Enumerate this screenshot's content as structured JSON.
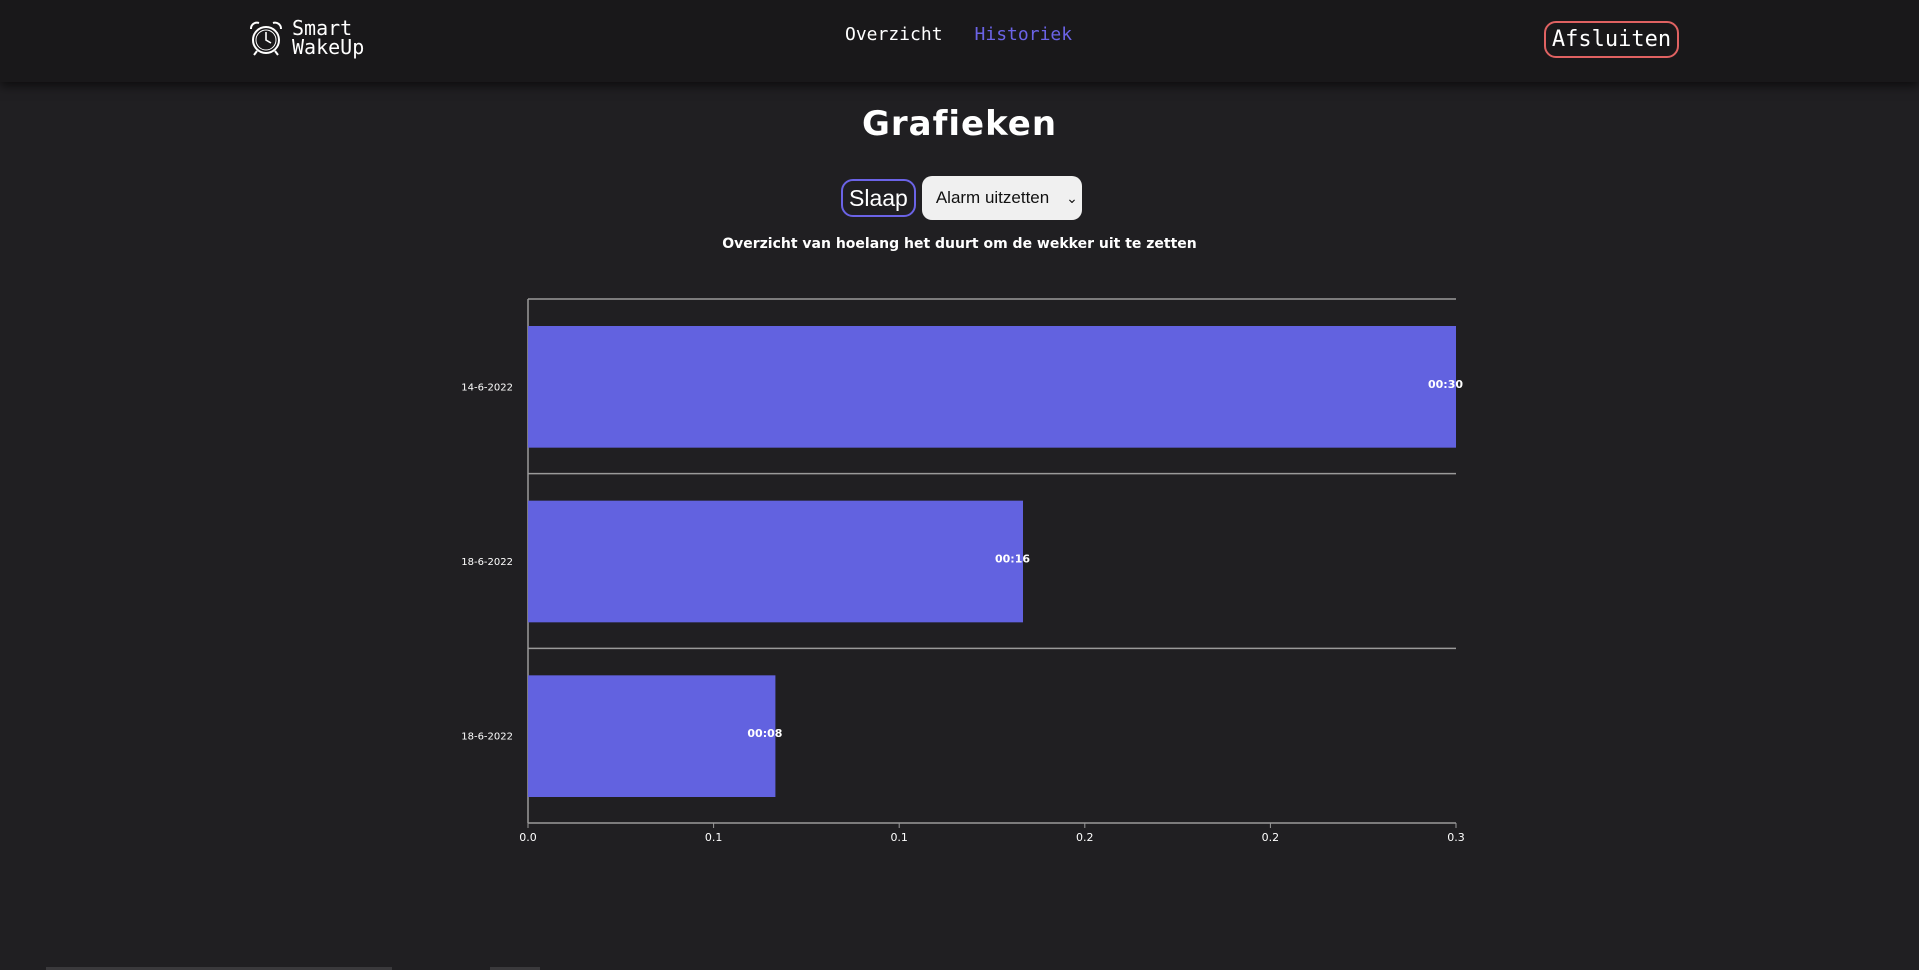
{
  "header": {
    "logo_line1": "Smart",
    "logo_line2": "WakeUp",
    "logo_icon": "alarm-clock-icon",
    "nav": {
      "overview_label": "Overzicht",
      "history_label": "Historiek"
    },
    "logout_label": "Afsluiten"
  },
  "main": {
    "title": "Grafieken",
    "sleep_button_label": "Slaap",
    "select_value": "Alarm uitzetten"
  },
  "colors": {
    "accent": "#6b63e6",
    "bar": "#6262e0",
    "logout_border": "#e06262",
    "background": "#201f22"
  },
  "chart_data": {
    "type": "bar",
    "orientation": "horizontal",
    "title": "Overzicht van hoelang het duurt om de wekker uit te zetten",
    "categories": [
      "14-6-2022",
      "18-6-2022",
      "18-6-2022"
    ],
    "values": [
      0.5,
      0.2667,
      0.1333
    ],
    "value_labels": [
      "00:30",
      "00:16",
      "00:08"
    ],
    "xlim": [
      0,
      0.5
    ],
    "x_ticks": [
      "0.0",
      "0.1",
      "0.1",
      "0.2",
      "0.2",
      "0.3"
    ],
    "grid": true
  }
}
